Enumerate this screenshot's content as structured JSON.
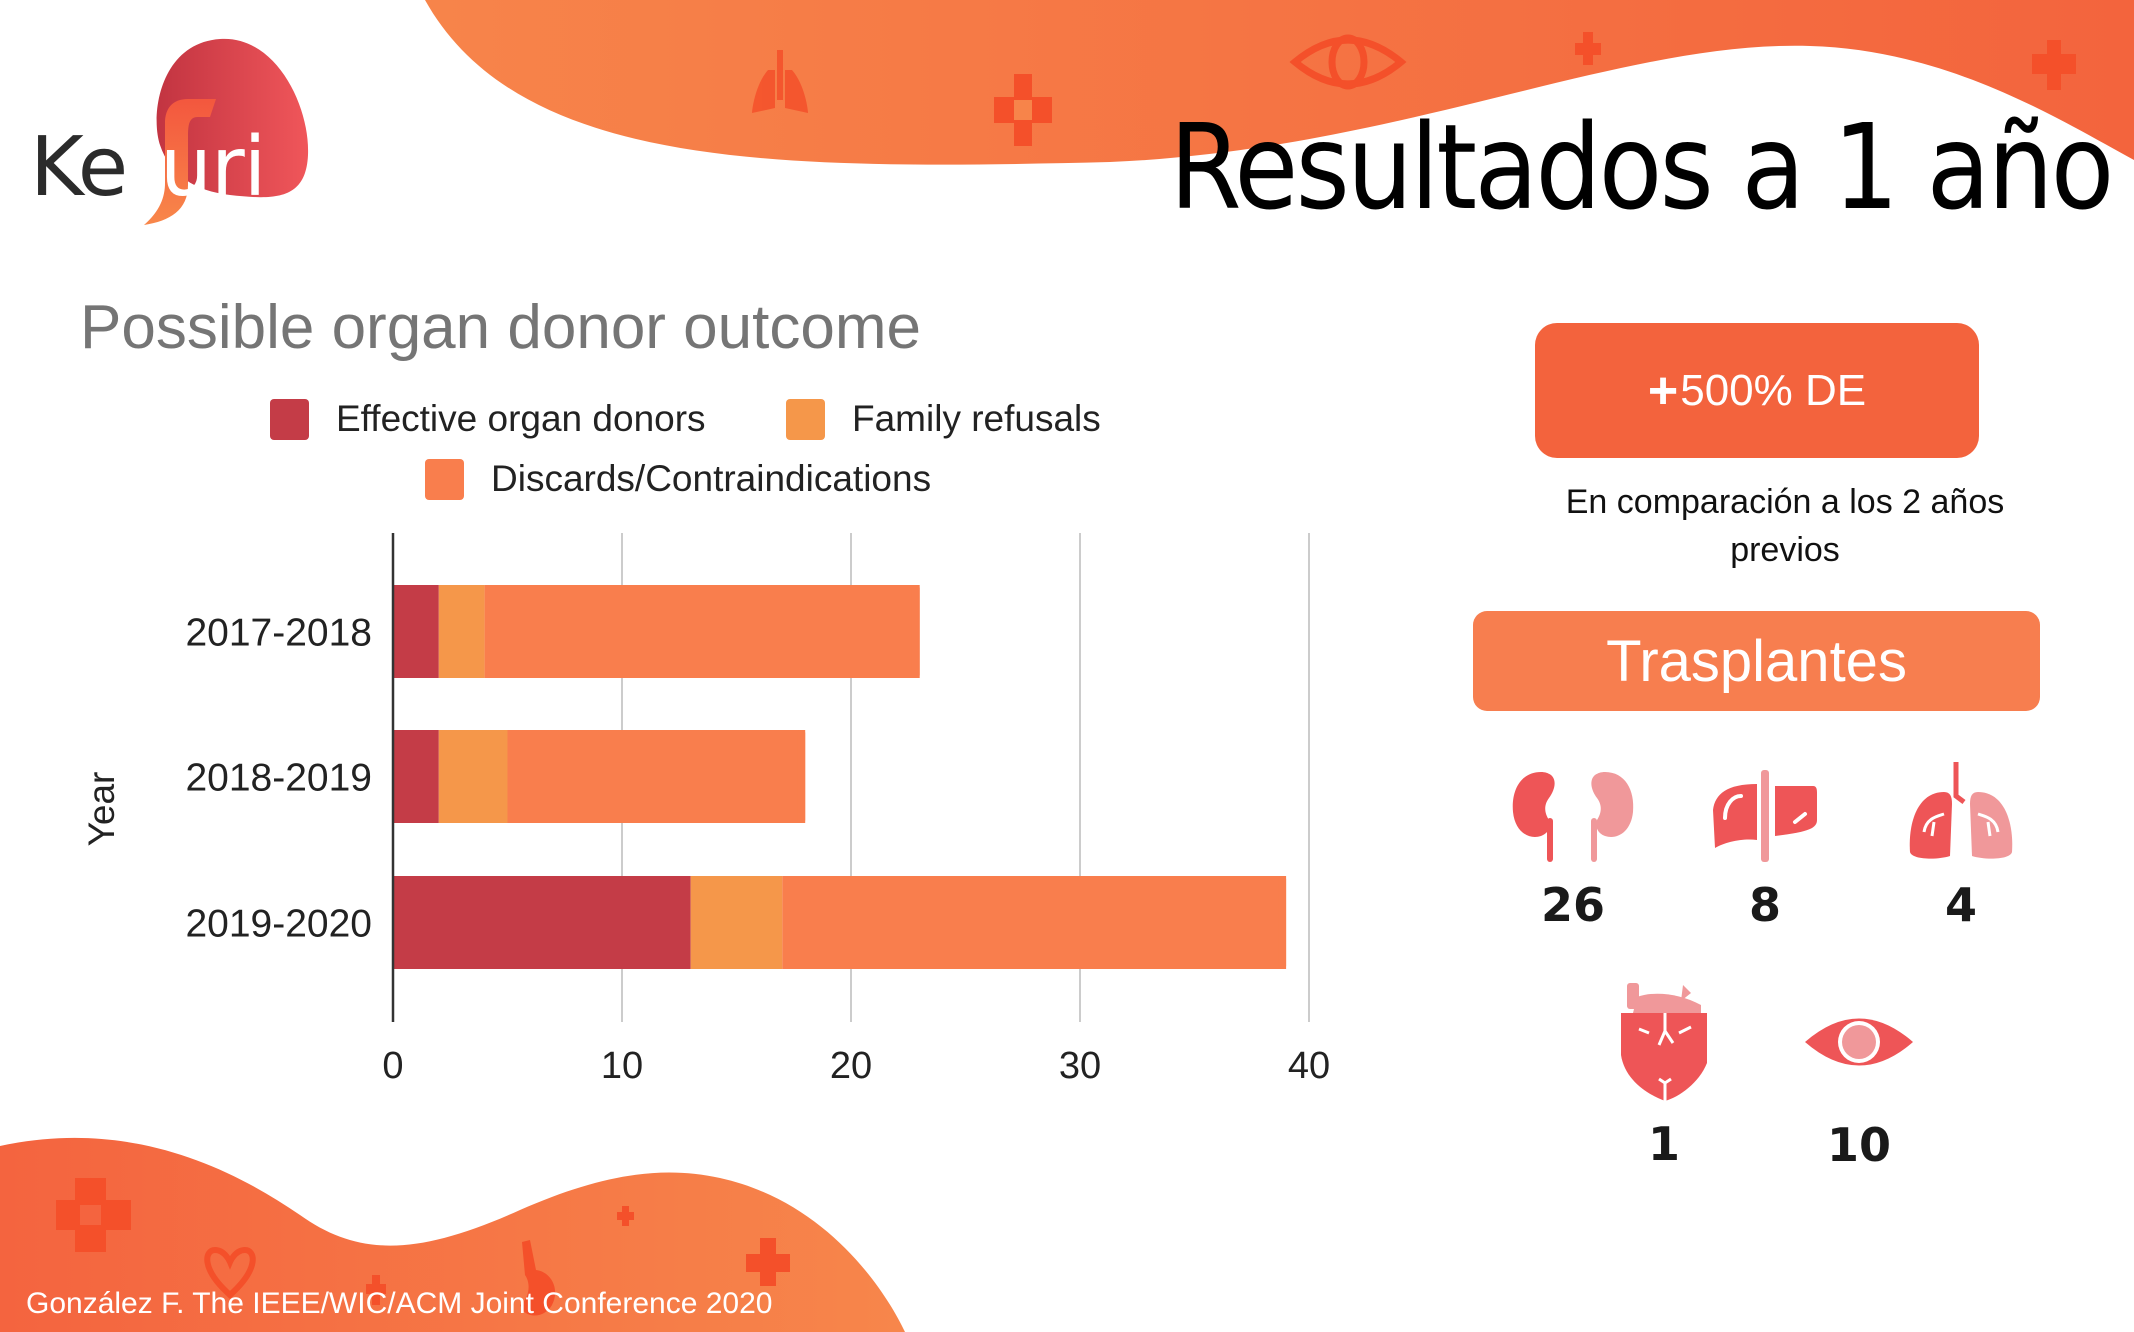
{
  "brand": {
    "logo_text_left": "Ke",
    "logo_text_right": "uri",
    "logo_full": "Kefuri"
  },
  "header": {
    "title": "Resultados a 1 año"
  },
  "colors": {
    "accent_orange": "#f3633d",
    "soft_orange": "#f77e4f",
    "organ_red": "#ee5557",
    "organ_pink": "#f0989a",
    "logo_red": "#d43f4a",
    "decor_orange": "#f4502a"
  },
  "chart_data": {
    "type": "bar",
    "orientation": "horizontal",
    "stacked": true,
    "title": "Possible organ donor outcome",
    "xlabel": "",
    "ylabel": "Year",
    "categories": [
      "2017-2018",
      "2018-2019",
      "2019-2020"
    ],
    "series": [
      {
        "name": "Effective organ donors",
        "color": "#c43c47",
        "values": [
          2,
          2,
          13
        ]
      },
      {
        "name": "Family refusals",
        "color": "#f5974a",
        "values": [
          2,
          3,
          4
        ]
      },
      {
        "name": "Discards/Contraindications",
        "color": "#f97e4d",
        "values": [
          19,
          13,
          22
        ]
      }
    ],
    "xlim": [
      0,
      40
    ],
    "xticks": [
      "0",
      "10",
      "20",
      "30",
      "40"
    ],
    "grid": true,
    "legend_position": "top"
  },
  "stats": {
    "highlight": {
      "prefix": "+",
      "value": "500% DE"
    },
    "note_line1": "En comparación a los 2 años",
    "note_line2": "previos"
  },
  "transplants": {
    "heading": "Trasplantes",
    "organs": [
      {
        "name": "Riñón",
        "icon": "kidney-icon",
        "count": "26"
      },
      {
        "name": "Hígado",
        "icon": "liver-icon",
        "count": "8"
      },
      {
        "name": "Pulmón",
        "icon": "lungs-icon",
        "count": "4"
      },
      {
        "name": "Corazón",
        "icon": "heart-icon",
        "count": "1"
      },
      {
        "name": "Córnea",
        "icon": "eye-icon",
        "count": "10"
      }
    ]
  },
  "footer": {
    "citation": "González F. The IEEE/WIC/ACM Joint Conference 2020"
  }
}
